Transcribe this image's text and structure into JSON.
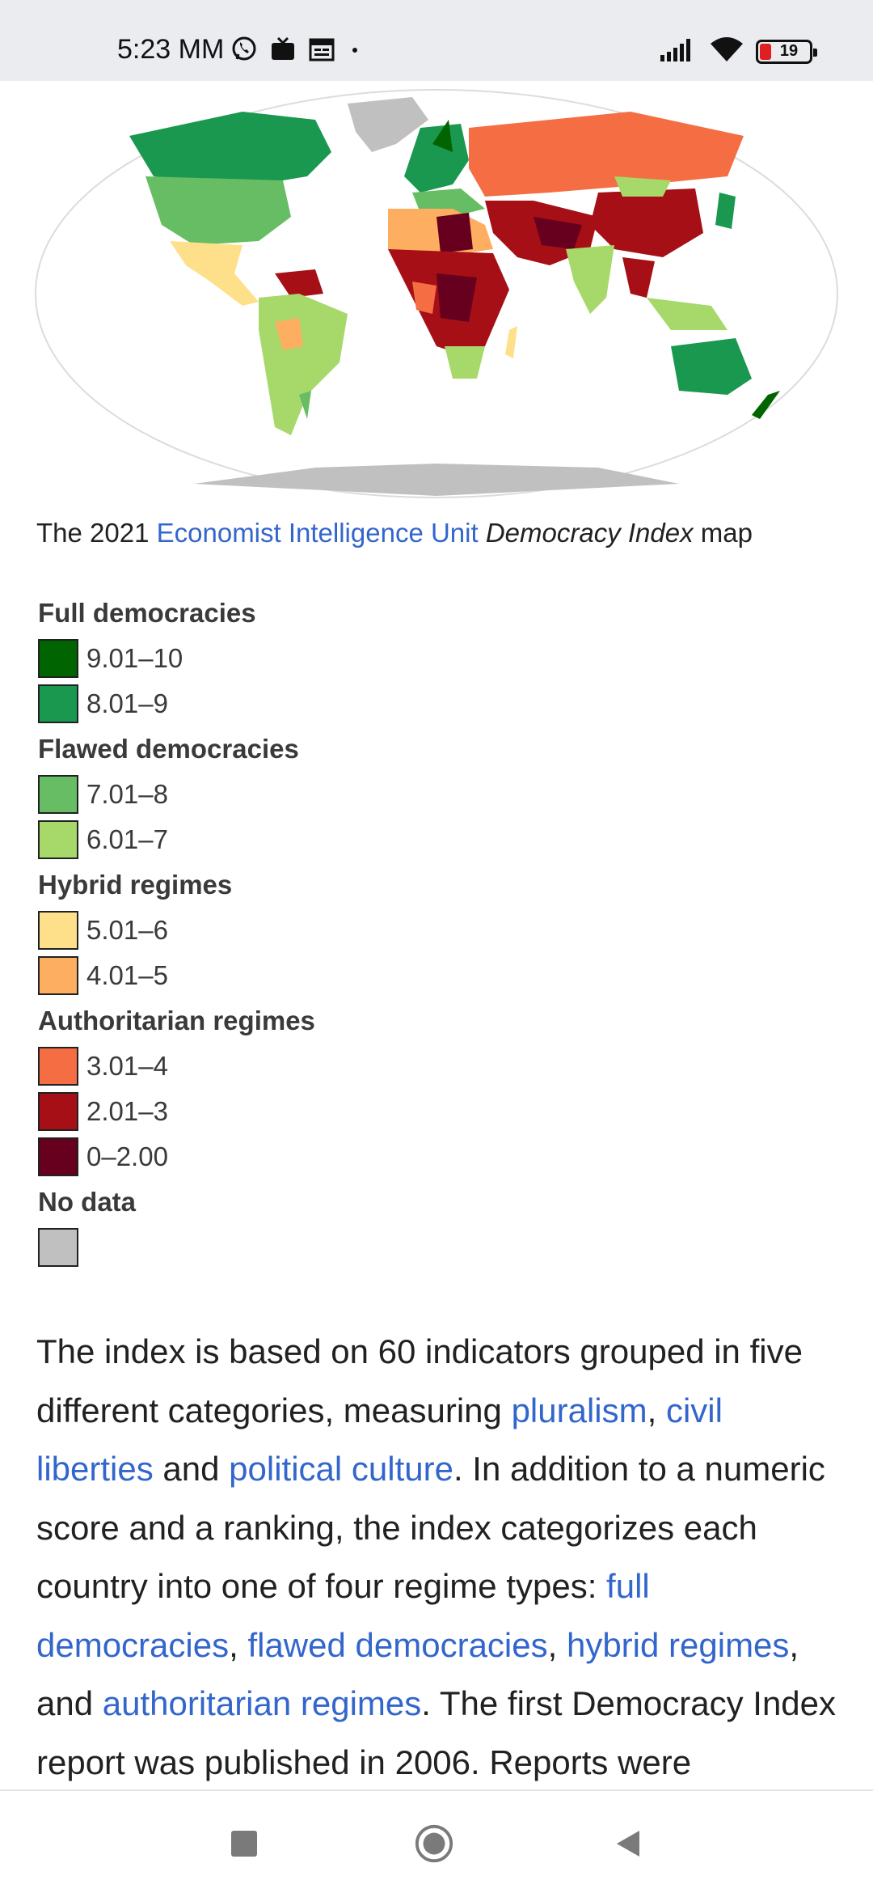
{
  "status_bar": {
    "time": "5:23 MM",
    "battery_level": "19",
    "icons_left": [
      "viber-icon",
      "tv-icon",
      "calendar-icon",
      "dot-icon"
    ],
    "icons_right": [
      "signal-icon",
      "wifi-icon",
      "battery-icon"
    ]
  },
  "caption": {
    "prefix": "The 2021 ",
    "link": "Economist Intelligence Unit",
    "emphasis": "Democracy Index",
    "suffix": " map"
  },
  "legend": {
    "groups": [
      {
        "heading": "Full democracies",
        "items": [
          {
            "range": "9.01–10",
            "color": "#006400"
          },
          {
            "range": "8.01–9",
            "color": "#1a9850"
          }
        ]
      },
      {
        "heading": "Flawed democracies",
        "items": [
          {
            "range": "7.01–8",
            "color": "#66bd63"
          },
          {
            "range": "6.01–7",
            "color": "#a6d96a"
          }
        ]
      },
      {
        "heading": "Hybrid regimes",
        "items": [
          {
            "range": "5.01–6",
            "color": "#fee08b"
          },
          {
            "range": "4.01–5",
            "color": "#fdae61"
          }
        ]
      },
      {
        "heading": "Authoritarian regimes",
        "items": [
          {
            "range": "3.01–4",
            "color": "#f46d43"
          },
          {
            "range": "2.01–3",
            "color": "#a50f15"
          },
          {
            "range": "0–2.00",
            "color": "#67001f"
          }
        ]
      },
      {
        "heading": "No data",
        "items": [
          {
            "range": "",
            "color": "#c0c0c0"
          }
        ]
      }
    ]
  },
  "paragraph": {
    "t1": "The index is based on 60 indicators grouped in five different categories, measuring ",
    "l1": "pluralism",
    "t2": ", ",
    "l2": "civil liberties",
    "t3": " and ",
    "l3": "political culture",
    "t4": ". In addition to a numeric score and a ranking, the index categorizes each country into one of four regime types: ",
    "l4": "full democracies",
    "t5": ", ",
    "l5": "flawed democracies",
    "t6": ", ",
    "l6": "hybrid regimes",
    "t7": ", and ",
    "l7": "authoritarian regimes",
    "t8": ". The first Democracy Index report was published in 2006. Reports were"
  },
  "nav_bar": {
    "buttons": [
      "recent-apps-icon",
      "home-icon",
      "back-icon"
    ]
  }
}
